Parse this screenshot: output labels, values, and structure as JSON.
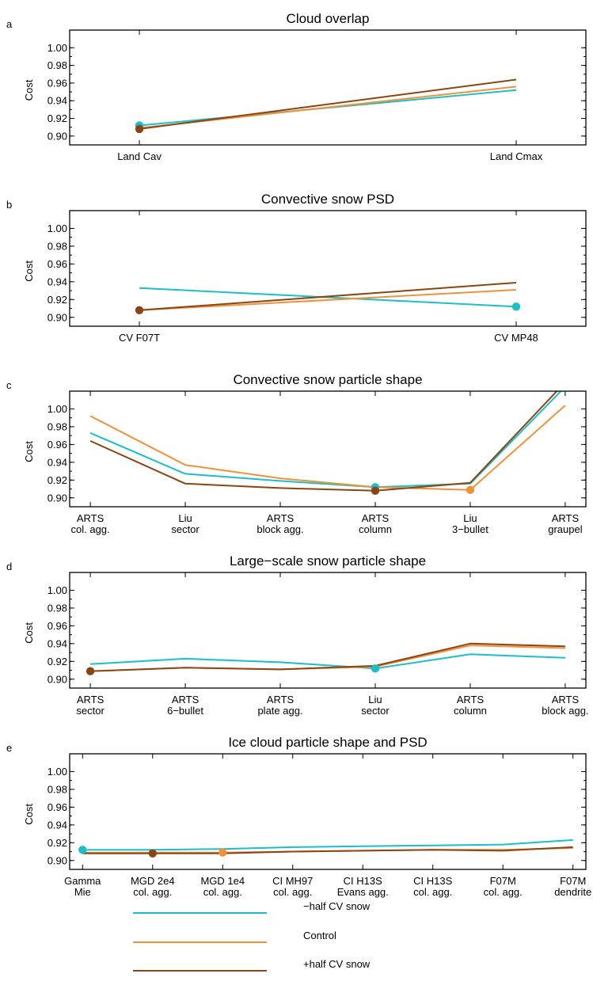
{
  "colors": {
    "-half CV snow": "#1ABFC8",
    "Control": "#F0913A",
    "+half CV snow": "#8B4513",
    "axis": "#000000"
  },
  "legend": {
    "position": "bottom-center",
    "entries": [
      {
        "name": "−half CV snow",
        "color": "#1ABFC8"
      },
      {
        "name": "Control",
        "color": "#F0913A"
      },
      {
        "name": "+half CV snow",
        "color": "#8B4513"
      }
    ]
  },
  "chart_data": [
    {
      "panel": "a",
      "type": "line",
      "title": "Cloud overlap",
      "ylabel": "Cost",
      "ylim": [
        0.89,
        1.02
      ],
      "yticks": [
        "0.90",
        "0.92",
        "0.94",
        "0.96",
        "0.98",
        "1.00"
      ],
      "categories": [
        [
          "Land Cav"
        ],
        [
          "Land Cmax"
        ]
      ],
      "series": [
        {
          "name": "−half CV snow",
          "values": [
            0.912,
            0.952
          ],
          "marker_index": 0
        },
        {
          "name": "Control",
          "values": [
            0.909,
            0.956
          ],
          "marker_index": null
        },
        {
          "name": "+half CV snow",
          "values": [
            0.908,
            0.964
          ],
          "marker_index": 0
        }
      ]
    },
    {
      "panel": "b",
      "type": "line",
      "title": "Convective snow PSD",
      "ylabel": "Cost",
      "ylim": [
        0.89,
        1.02
      ],
      "yticks": [
        "0.90",
        "0.92",
        "0.94",
        "0.96",
        "0.98",
        "1.00"
      ],
      "categories": [
        [
          "CV F07T"
        ],
        [
          "CV MP48"
        ]
      ],
      "series": [
        {
          "name": "−half CV snow",
          "values": [
            0.933,
            0.912
          ],
          "marker_index": 1
        },
        {
          "name": "Control",
          "values": [
            0.908,
            0.931
          ],
          "marker_index": null
        },
        {
          "name": "+half CV snow",
          "values": [
            0.908,
            0.939
          ],
          "marker_index": 0
        }
      ]
    },
    {
      "panel": "c",
      "type": "line",
      "title": "Convective snow particle shape",
      "ylabel": "Cost",
      "ylim": [
        0.89,
        1.02
      ],
      "yticks": [
        "0.90",
        "0.92",
        "0.94",
        "0.96",
        "0.98",
        "1.00"
      ],
      "categories": [
        [
          "ARTS",
          "col. agg."
        ],
        [
          "Liu",
          "sector"
        ],
        [
          "ARTS",
          "block agg."
        ],
        [
          "ARTS",
          "column"
        ],
        [
          "Liu",
          "3−bullet"
        ],
        [
          "ARTS",
          "graupel"
        ]
      ],
      "series": [
        {
          "name": "−half CV snow",
          "values": [
            0.973,
            0.927,
            0.919,
            0.912,
            0.916,
            1.025
          ],
          "marker_index": 3
        },
        {
          "name": "Control",
          "values": [
            0.992,
            0.937,
            0.922,
            0.912,
            0.909,
            1.004
          ],
          "marker_index": 4
        },
        {
          "name": "+half CV snow",
          "values": [
            0.964,
            0.916,
            0.911,
            0.908,
            0.917,
            1.03
          ],
          "marker_index": 3
        }
      ]
    },
    {
      "panel": "d",
      "type": "line",
      "title": "Large−scale snow particle shape",
      "ylabel": "Cost",
      "ylim": [
        0.89,
        1.02
      ],
      "yticks": [
        "0.90",
        "0.92",
        "0.94",
        "0.96",
        "0.98",
        "1.00"
      ],
      "categories": [
        [
          "ARTS",
          "sector"
        ],
        [
          "ARTS",
          "6−bullet"
        ],
        [
          "ARTS",
          "plate agg."
        ],
        [
          "Liu",
          "sector"
        ],
        [
          "ARTS",
          "column"
        ],
        [
          "ARTS",
          "block agg."
        ]
      ],
      "series": [
        {
          "name": "−half CV snow",
          "values": [
            0.917,
            0.923,
            0.919,
            0.912,
            0.928,
            0.924
          ],
          "marker_index": 3
        },
        {
          "name": "Control",
          "values": [
            0.909,
            0.913,
            0.911,
            0.914,
            0.938,
            0.935
          ],
          "marker_index": null
        },
        {
          "name": "+half CV snow",
          "values": [
            0.909,
            0.913,
            0.911,
            0.915,
            0.94,
            0.937
          ],
          "marker_index": 0
        }
      ]
    },
    {
      "panel": "e",
      "type": "line",
      "title": "Ice cloud particle shape and PSD",
      "ylabel": "Cost",
      "ylim": [
        0.89,
        1.02
      ],
      "yticks": [
        "0.90",
        "0.92",
        "0.94",
        "0.96",
        "0.98",
        "1.00"
      ],
      "categories": [
        [
          "Gamma",
          "Mie"
        ],
        [
          "MGD 2e4",
          "col. agg."
        ],
        [
          "MGD 1e4",
          "col. agg."
        ],
        [
          "CI MH97",
          "col. agg."
        ],
        [
          "CI H13S",
          "Evans agg."
        ],
        [
          "CI H13S",
          "col. agg."
        ],
        [
          "F07M",
          "col. agg."
        ],
        [
          "F07M",
          "dendrite"
        ]
      ],
      "series": [
        {
          "name": "−half CV snow",
          "values": [
            0.912,
            0.912,
            0.913,
            0.915,
            0.916,
            0.917,
            0.918,
            0.923
          ],
          "marker_index": 0
        },
        {
          "name": "Control",
          "values": [
            0.909,
            0.909,
            0.909,
            0.91,
            0.911,
            0.912,
            0.912,
            0.914
          ],
          "marker_index": 2
        },
        {
          "name": "+half CV snow",
          "values": [
            0.908,
            0.908,
            0.908,
            0.91,
            0.911,
            0.912,
            0.911,
            0.915
          ],
          "marker_index": 1
        }
      ]
    }
  ]
}
